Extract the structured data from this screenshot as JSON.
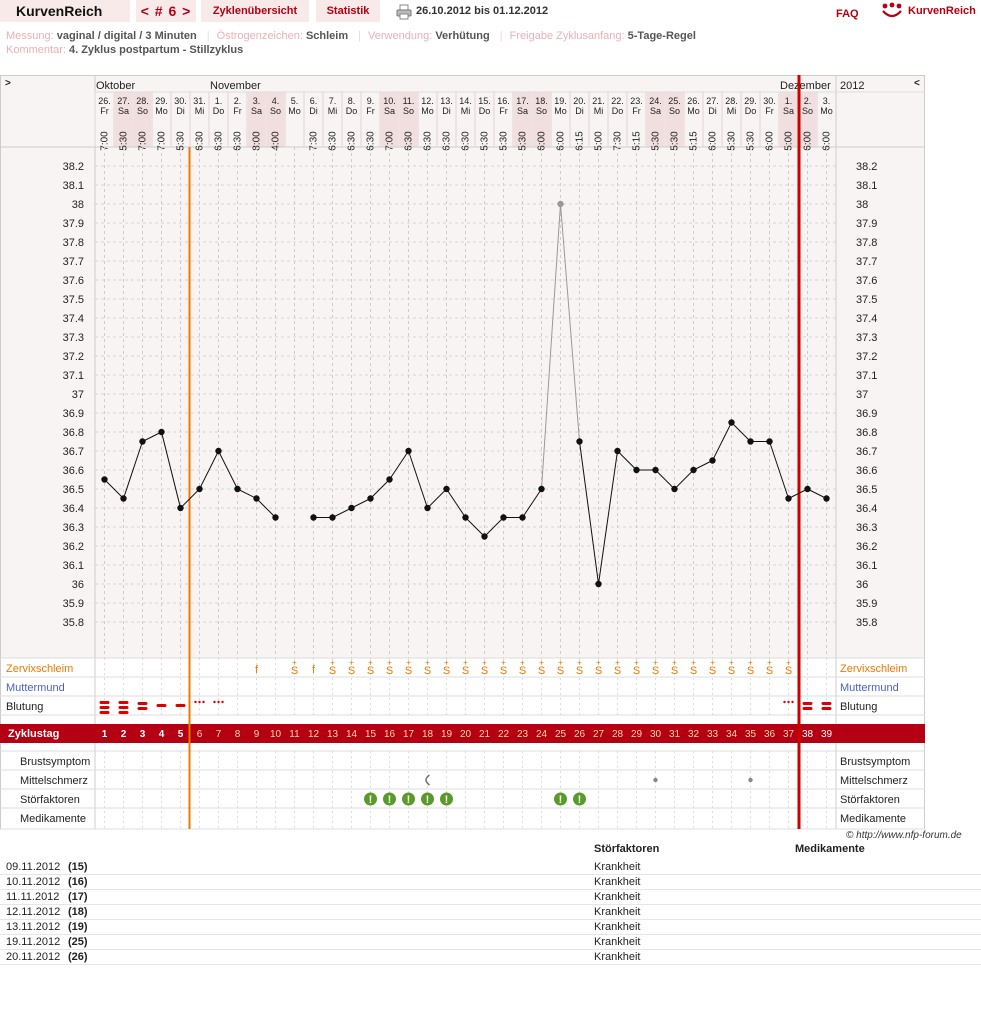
{
  "header": {
    "logo": "KurvenReich",
    "cycle_nav": "< # 6 >",
    "tab_overview": "Zyklenübersicht",
    "tab_stats": "Statistik",
    "date_range": "26.10.2012 bis 01.12.2012",
    "faq": "FAQ",
    "brand": "KurvenReich"
  },
  "info": {
    "measure_label": "Messung:",
    "measure_value": "vaginal / digital / 3 Minuten",
    "estrogen_label": "Östrogenzeichen:",
    "estrogen_value": "Schleim",
    "usage_label": "Verwendung:",
    "usage_value": "Verhütung",
    "release_label": "Freigabe Zyklusanfang:",
    "release_value": "5-Tage-Regel",
    "comment_label": "Kommentar:",
    "comment_value": "4. Zyklus postpartum - Stillzyklus"
  },
  "chart_data": {
    "type": "line",
    "nav_prev": ">",
    "nav_next": "<",
    "year": "2012",
    "month_labels": [
      {
        "label": "Oktober",
        "day_index": 0
      },
      {
        "label": "November",
        "day_index": 6
      },
      {
        "label": "Dezember",
        "day_index": 36
      }
    ],
    "dates": [
      "26.",
      "27.",
      "28.",
      "29.",
      "30.",
      "31.",
      "1.",
      "2.",
      "3.",
      "4.",
      "5.",
      "6.",
      "7.",
      "8.",
      "9.",
      "10.",
      "11.",
      "12.",
      "13.",
      "14.",
      "15.",
      "16.",
      "17.",
      "18.",
      "19.",
      "20.",
      "21.",
      "22.",
      "23.",
      "24.",
      "25.",
      "26.",
      "27.",
      "28.",
      "29.",
      "30.",
      "1.",
      "2.",
      "3."
    ],
    "weekdays": [
      "Fr",
      "Sa",
      "So",
      "Mo",
      "Di",
      "Mi",
      "Do",
      "Fr",
      "Sa",
      "So",
      "Mo",
      "Di",
      "Mi",
      "Do",
      "Fr",
      "Sa",
      "So",
      "Mo",
      "Di",
      "Mi",
      "Do",
      "Fr",
      "Sa",
      "So",
      "Mo",
      "Di",
      "Mi",
      "Do",
      "Fr",
      "Sa",
      "So",
      "Mo",
      "Di",
      "Mi",
      "Do",
      "Fr",
      "Sa",
      "So",
      "Mo"
    ],
    "times": [
      "7:00",
      "5:30",
      "7:00",
      "7:00",
      "5:30",
      "6:30",
      "6:30",
      "6:30",
      "8:00",
      "4:00",
      "",
      "7:30",
      "6:30",
      "6:30",
      "6:30",
      "7:00",
      "6:30",
      "6:30",
      "6:30",
      "6:30",
      "5:30",
      "5:30",
      "5:30",
      "6:00",
      "6:00",
      "6:15",
      "5:00",
      "7:30",
      "5:15",
      "5:30",
      "5:30",
      "5:15",
      "6:00",
      "5:30",
      "5:30",
      "6:00",
      "5:00",
      "6:00",
      "6:00"
    ],
    "temperatures": [
      36.55,
      36.45,
      36.75,
      36.8,
      36.4,
      36.5,
      36.7,
      36.5,
      36.45,
      36.35,
      null,
      36.35,
      36.35,
      36.4,
      36.45,
      36.55,
      36.7,
      36.4,
      36.5,
      36.35,
      36.25,
      36.35,
      36.35,
      36.5,
      38.0,
      36.75,
      36.0,
      36.7,
      36.6,
      36.6,
      36.5,
      36.6,
      36.65,
      36.85,
      36.75,
      36.75,
      36.45,
      36.5,
      36.45
    ],
    "outlier_index": 24,
    "y_ticks": [
      "38.2",
      "38.1",
      "38",
      "37.9",
      "37.8",
      "37.7",
      "37.6",
      "37.5",
      "37.4",
      "37.3",
      "37.2",
      "37.1",
      "37",
      "36.9",
      "36.8",
      "36.7",
      "36.6",
      "36.5",
      "36.4",
      "36.3",
      "36.2",
      "36.1",
      "36",
      "35.9",
      "35.8"
    ],
    "ylim": [
      35.7,
      38.3
    ],
    "cycle_start_line_index": 5,
    "end_line_index": 36,
    "rows": {
      "cervix_label": "Zervixschleim",
      "cervix": [
        "",
        "",
        "",
        "",
        "",
        "",
        "",
        "",
        "f",
        "",
        "",
        "f",
        "",
        "",
        "",
        "",
        "",
        "",
        "",
        "",
        "",
        "",
        "",
        "",
        "",
        "",
        "",
        "",
        "",
        "",
        "",
        "",
        "",
        "",
        "",
        "",
        "",
        "",
        ""
      ],
      "cervix_s_from": 10,
      "cervix_s_to": 36,
      "cervix_s_skip": [
        11
      ],
      "cervix_s_mark": "S",
      "cervix_s_top": "+",
      "muttermund_label": "Muttermund",
      "bleeding_label": "Blutung",
      "bleeding": [
        "heavy",
        "heavy",
        "medium",
        "light",
        "light",
        "spot",
        "spot",
        "",
        "",
        "",
        "",
        "",
        "",
        "",
        "",
        "",
        "",
        "",
        "",
        "",
        "",
        "",
        "",
        "",
        "",
        "",
        "",
        "",
        "",
        "",
        "",
        "",
        "",
        "",
        "",
        "",
        "spot",
        "medium",
        "medium"
      ],
      "cycle_label": "Zyklustag",
      "cycle_days": [
        "1",
        "2",
        "3",
        "4",
        "5",
        "6",
        "7",
        "8",
        "9",
        "10",
        "11",
        "12",
        "13",
        "14",
        "15",
        "16",
        "17",
        "18",
        "19",
        "20",
        "21",
        "22",
        "23",
        "24",
        "25",
        "26",
        "27",
        "28",
        "29",
        "30",
        "31",
        "32",
        "33",
        "34",
        "35",
        "36",
        "37",
        "38",
        "39"
      ],
      "breast_label": "Brustsymptom",
      "pain_label": "Mittelschmerz",
      "pain": {
        "17": "crescent",
        "29": "dot",
        "34": "dot"
      },
      "disturb_label": "Störfaktoren",
      "disturb_days": [
        14,
        15,
        16,
        17,
        18,
        24,
        25
      ],
      "disturb_symbol": "!",
      "meds_label": "Medikamente"
    }
  },
  "copyright": "© http://www.nfp-forum.de",
  "notes": {
    "col_disturb": "Störfaktoren",
    "col_meds": "Medikamente",
    "rows": [
      {
        "date": "09.11.2012",
        "day": "(15)",
        "disturb": "Krankheit"
      },
      {
        "date": "10.11.2012",
        "day": "(16)",
        "disturb": "Krankheit"
      },
      {
        "date": "11.11.2012",
        "day": "(17)",
        "disturb": "Krankheit"
      },
      {
        "date": "12.11.2012",
        "day": "(18)",
        "disturb": "Krankheit"
      },
      {
        "date": "13.11.2012",
        "day": "(19)",
        "disturb": "Krankheit"
      },
      {
        "date": "19.11.2012",
        "day": "(25)",
        "disturb": "Krankheit"
      },
      {
        "date": "20.11.2012",
        "day": "(26)",
        "disturb": "Krankheit"
      }
    ]
  },
  "colors": {
    "accent": "#b40012",
    "orange": "#f07800",
    "red_line": "#cc0000",
    "blue": "#4a5fc9",
    "green": "#5a9a2a",
    "grid_bg": "#f9f4f4"
  }
}
